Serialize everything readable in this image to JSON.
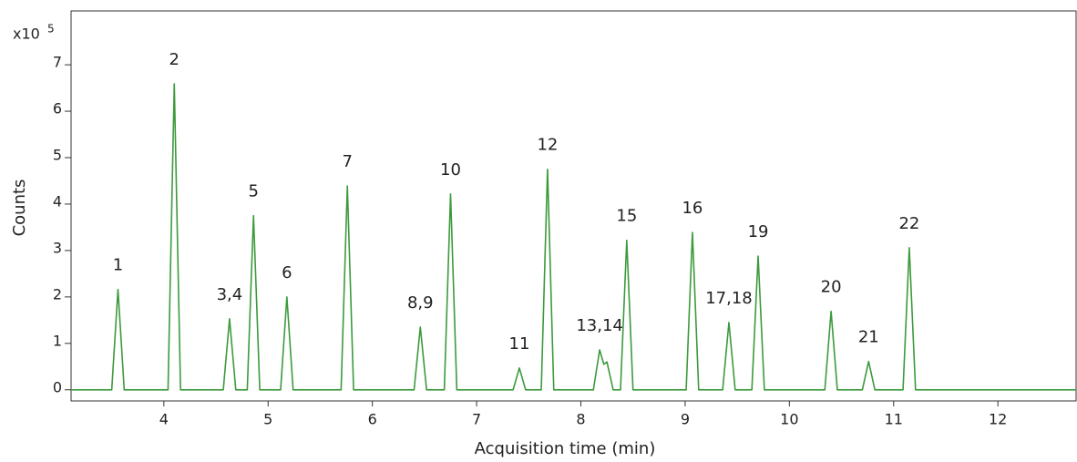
{
  "chart_data": {
    "type": "line",
    "x_label": "Acquisition time (min)",
    "y_label": "Counts",
    "y_multiplier": {
      "base": "x10",
      "exponent": "5"
    },
    "xlim": [
      3.11,
      12.75
    ],
    "ylim": [
      -0.24,
      8.16
    ],
    "xticks": [
      4,
      5,
      6,
      7,
      8,
      9,
      10,
      11,
      12
    ],
    "yticks": [
      0,
      1,
      2,
      3,
      4,
      5,
      6,
      7
    ],
    "grid": false,
    "color": "#3c9a3c",
    "x": [
      3.11,
      3.5,
      3.56,
      3.62,
      4.04,
      4.1,
      4.16,
      4.57,
      4.63,
      4.69,
      4.8,
      4.86,
      4.92,
      5.12,
      5.18,
      5.24,
      5.7,
      5.76,
      5.82,
      6.4,
      6.46,
      6.52,
      6.69,
      6.75,
      6.81,
      7.35,
      7.41,
      7.47,
      7.62,
      7.68,
      7.74,
      8.12,
      8.18,
      8.22,
      8.25,
      8.31,
      8.38,
      8.44,
      8.5,
      9.01,
      9.07,
      9.13,
      9.36,
      9.42,
      9.48,
      9.64,
      9.7,
      9.76,
      10.34,
      10.4,
      10.46,
      10.7,
      10.76,
      10.82,
      11.09,
      11.15,
      11.21,
      12.75
    ],
    "values": [
      0,
      0,
      2.16,
      0,
      0,
      6.59,
      0,
      0,
      1.53,
      0,
      0,
      3.75,
      0,
      0,
      2.0,
      0,
      0,
      4.39,
      0,
      0,
      1.35,
      0,
      0,
      4.22,
      0,
      0,
      0.47,
      0,
      0,
      4.75,
      0,
      0,
      0.86,
      0.55,
      0.6,
      0,
      0,
      3.22,
      0,
      0,
      3.39,
      0,
      0,
      1.45,
      0,
      0,
      2.88,
      0,
      0,
      1.69,
      0,
      0,
      0.61,
      0,
      0,
      3.06,
      0,
      0
    ],
    "annotations": [
      {
        "text": "1",
        "x": 3.56,
        "y": 2.16
      },
      {
        "text": "2",
        "x": 4.1,
        "y": 6.59
      },
      {
        "text": "3,4",
        "x": 4.63,
        "y": 1.53
      },
      {
        "text": "5",
        "x": 4.86,
        "y": 3.75
      },
      {
        "text": "6",
        "x": 5.18,
        "y": 2.0
      },
      {
        "text": "7",
        "x": 5.76,
        "y": 4.39
      },
      {
        "text": "8,9",
        "x": 6.46,
        "y": 1.35
      },
      {
        "text": "10",
        "x": 6.75,
        "y": 4.22
      },
      {
        "text": "11",
        "x": 7.41,
        "y": 0.47
      },
      {
        "text": "12",
        "x": 7.68,
        "y": 4.75
      },
      {
        "text": "13,14",
        "x": 8.18,
        "y": 0.86
      },
      {
        "text": "15",
        "x": 8.44,
        "y": 3.22
      },
      {
        "text": "16",
        "x": 9.07,
        "y": 3.39
      },
      {
        "text": "17,18",
        "x": 9.42,
        "y": 1.45
      },
      {
        "text": "19",
        "x": 9.7,
        "y": 2.88
      },
      {
        "text": "20",
        "x": 10.4,
        "y": 1.69
      },
      {
        "text": "21",
        "x": 10.76,
        "y": 0.61
      },
      {
        "text": "22",
        "x": 11.15,
        "y": 3.06
      }
    ]
  }
}
